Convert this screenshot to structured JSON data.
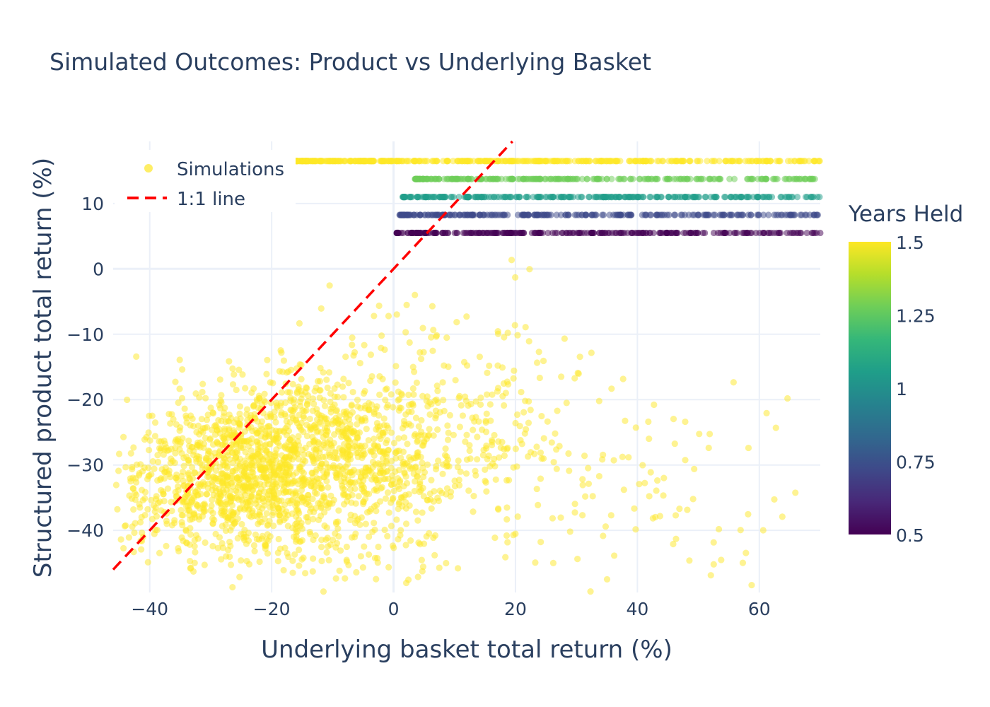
{
  "chart_data": {
    "type": "scatter",
    "title": "Simulated Outcomes: Product vs Underlying Basket",
    "xlabel": "Underlying basket total return (%)",
    "ylabel": "Structured product total return (%)",
    "xlim": [
      -46,
      70
    ],
    "ylim": [
      -49.5,
      19.5
    ],
    "x_ticks": [
      -40,
      -20,
      0,
      20,
      40,
      60
    ],
    "x_tick_labels": [
      "−40",
      "−20",
      "0",
      "20",
      "40",
      "60"
    ],
    "y_ticks": [
      -40,
      -30,
      -20,
      -10,
      0,
      10
    ],
    "y_tick_labels": [
      "−40",
      "−30",
      "−20",
      "−10",
      "0",
      "10"
    ],
    "grid": true,
    "legend": {
      "position": "top-left",
      "entries": [
        {
          "label": "Simulations",
          "kind": "marker",
          "color": "#fde725"
        },
        {
          "label": "1:1 line",
          "kind": "dashed-line",
          "color": "#ff0000"
        }
      ]
    },
    "colorbar": {
      "title": "Years Held",
      "colorscale": "Viridis",
      "range": [
        0.5,
        1.5
      ],
      "ticks": [
        1.5,
        1.25,
        1,
        0.75,
        0.5
      ],
      "tick_labels": [
        "1.5",
        "1.25",
        "1",
        "0.75",
        "0.5"
      ],
      "colors": [
        "#440154",
        "#482878",
        "#3e4989",
        "#31688e",
        "#26828e",
        "#1f9e89",
        "#35b779",
        "#6ece58",
        "#b5de2b",
        "#fde725"
      ]
    },
    "reference_line": {
      "name": "1:1 line",
      "slope": 1,
      "intercept": 0,
      "color": "#ff0000",
      "dash": "dashed"
    },
    "autocall_bands": [
      {
        "years_held": 0.5,
        "product_return": 5.5,
        "basket_return_range": [
          0.5,
          70
        ]
      },
      {
        "years_held": 0.75,
        "product_return": 8.25,
        "basket_return_range": [
          1.0,
          70
        ]
      },
      {
        "years_held": 1.0,
        "product_return": 11.0,
        "basket_return_range": [
          1.5,
          70
        ]
      },
      {
        "years_held": 1.25,
        "product_return": 13.75,
        "basket_return_range": [
          3.5,
          70
        ]
      },
      {
        "years_held": 1.5,
        "product_return": 16.5,
        "basket_return_range": [
          -16,
          70
        ]
      }
    ],
    "maturity_cloud": {
      "years_held": 1.5,
      "description_points": [
        {
          "x": -30,
          "y": -32
        },
        {
          "x": -20,
          "y": -30
        },
        {
          "x": -12,
          "y": -28
        },
        {
          "x": 0,
          "y": -30
        },
        {
          "x": 15,
          "y": -25
        },
        {
          "x": 40,
          "y": -35
        }
      ]
    }
  }
}
